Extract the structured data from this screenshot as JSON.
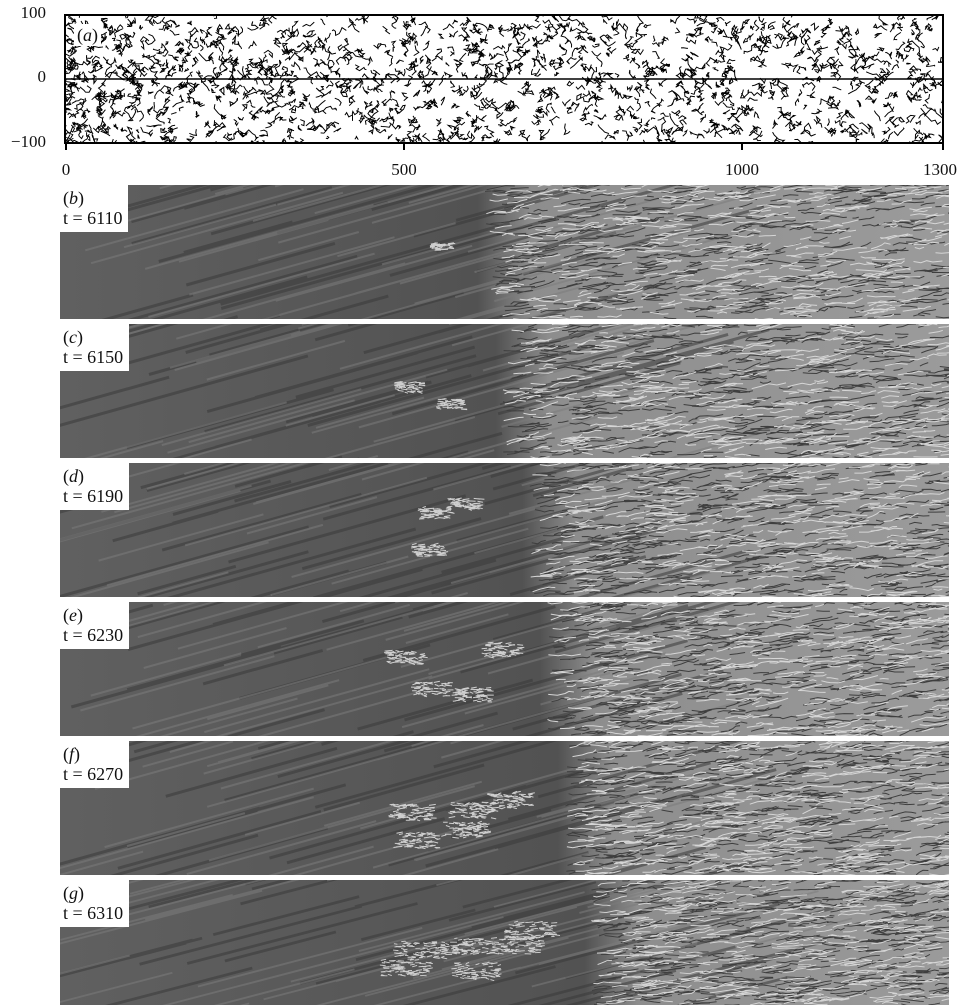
{
  "panel_a": {
    "label": "a",
    "y_ticks": [
      "100",
      "0",
      "−100"
    ],
    "x_ticks": [
      "0",
      "500",
      "1000",
      "1300"
    ]
  },
  "snapshots": [
    {
      "label": "b",
      "time_text": "t = 6110",
      "front": 0.5
    },
    {
      "label": "c",
      "time_text": "t = 6150",
      "front": 0.52
    },
    {
      "label": "d",
      "time_text": "t = 6190",
      "front": 0.55
    },
    {
      "label": "e",
      "time_text": "t = 6230",
      "front": 0.57
    },
    {
      "label": "f",
      "time_text": "t = 6270",
      "front": 0.59
    },
    {
      "label": "g",
      "time_text": "t = 6310",
      "front": 0.62
    }
  ],
  "colors": {
    "laminar": "#5a5a5a",
    "turbulent": "#9a9a9a",
    "frame": "#000000"
  }
}
